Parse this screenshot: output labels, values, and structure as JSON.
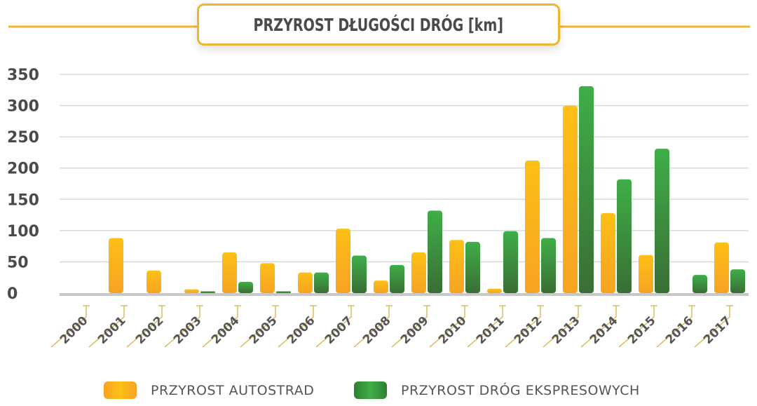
{
  "chart_data": {
    "type": "bar",
    "title": "PRZYROST DŁUGOŚCI DRÓG [km]",
    "categories": [
      "2000",
      "2001",
      "2002",
      "2003",
      "2004",
      "2005",
      "2006",
      "2007",
      "2008",
      "2009",
      "2010",
      "2011",
      "2012",
      "2013",
      "2014",
      "2015",
      "2016",
      "2017"
    ],
    "series": [
      {
        "name": "PRZYROST AUTOSTRAD",
        "color": "#f7a823",
        "values": [
          0,
          88,
          36,
          6,
          65,
          48,
          33,
          103,
          20,
          65,
          85,
          7,
          212,
          300,
          128,
          61,
          0,
          81
        ]
      },
      {
        "name": "PRZYROST DRÓG EKSPRESOWYCH",
        "color": "#3a8f3a",
        "values": [
          0,
          0,
          0,
          3,
          18,
          3,
          33,
          60,
          45,
          132,
          82,
          99,
          88,
          331,
          182,
          231,
          29,
          38
        ]
      }
    ],
    "yticks": [
      "0",
      "50",
      "100",
      "150",
      "200",
      "250",
      "300",
      "350"
    ],
    "ylim": [
      0,
      350
    ],
    "grid": true,
    "legend": "bottom",
    "accent": "#f0b52a"
  }
}
